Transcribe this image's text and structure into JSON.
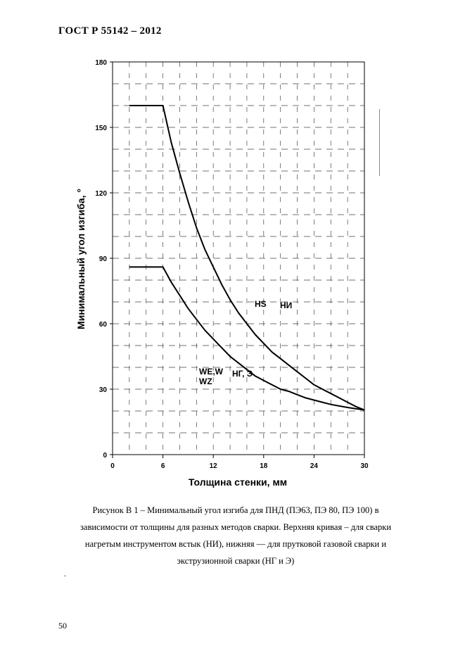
{
  "header": {
    "doc_title": "ГОСТ Р  55142 – 2012"
  },
  "chart_data": {
    "type": "line",
    "xlabel": "Толщина стенки, мм",
    "ylabel": "Минимальный угол изгиба, °",
    "xlim": [
      0,
      30
    ],
    "ylim": [
      0,
      180
    ],
    "x_ticks": [
      "0",
      "6",
      "12",
      "18",
      "24",
      "30"
    ],
    "y_ticks": [
      "0",
      "30",
      "60",
      "90",
      "120",
      "150",
      "180"
    ],
    "grid": "dashed",
    "series": [
      {
        "annotation": [
          "HS",
          "НИ"
        ],
        "x": [
          2,
          6,
          7,
          8,
          9,
          10,
          11,
          12,
          13,
          14,
          15,
          16,
          17,
          18,
          19,
          20,
          21,
          22,
          23,
          24,
          25,
          26,
          27,
          28,
          29,
          30
        ],
        "y": [
          160,
          160,
          143,
          129,
          116,
          104,
          94,
          86,
          78,
          71,
          65,
          60,
          55,
          51,
          47,
          44,
          41,
          38,
          35,
          32,
          30,
          28,
          26,
          24,
          22,
          20.5
        ]
      },
      {
        "annotation": [
          "WE,W",
          "WZ",
          "НГ, Э"
        ],
        "x": [
          2,
          6,
          7,
          8,
          9,
          10,
          11,
          12,
          13,
          14,
          15,
          16,
          17,
          18,
          19,
          20,
          21,
          22,
          23,
          24,
          25,
          26,
          27,
          28,
          29,
          30
        ],
        "y": [
          86,
          86,
          79,
          73,
          67,
          62,
          57,
          53,
          49,
          45,
          42,
          39,
          36,
          34,
          32,
          30,
          29,
          27.5,
          26,
          25,
          24,
          23,
          22.3,
          21.6,
          21,
          20.5
        ]
      }
    ]
  },
  "labels": {
    "upper_1": "HS",
    "upper_2": "НИ",
    "lower_1": "WE,W",
    "lower_2": "WZ",
    "lower_3": "НГ, Э"
  },
  "caption": {
    "line1": "Рисунок В 1 – Минимальный угол изгиба для ПНД (ПЭ63, ПЭ 80, ПЭ 100) в",
    "line2": "зависимости от толщины для разных методов сварки. Верхняя кривая – для сварки",
    "line3": "нагретым инструментом встык (НИ), нижняя — для прутковой газовой сварки и",
    "line4": "экструзионной сварки (НГ и Э)"
  },
  "misc": {
    "dot": ".",
    "page_number": "50"
  }
}
